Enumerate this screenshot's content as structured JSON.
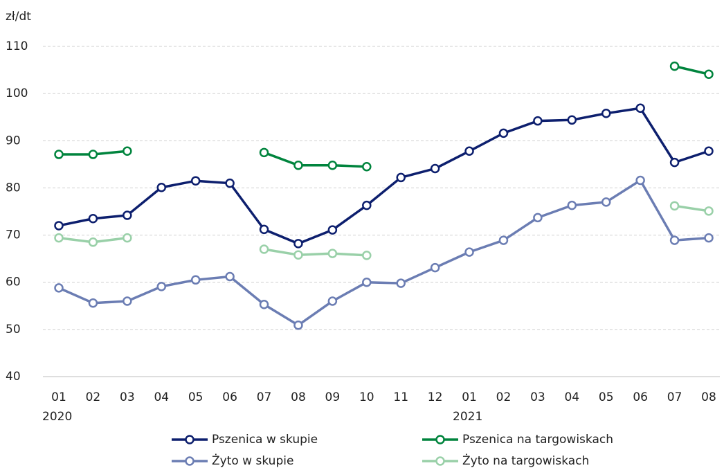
{
  "chart_data": {
    "type": "line",
    "y_unit_label": "zł/dt",
    "categories": [
      "01",
      "02",
      "03",
      "04",
      "05",
      "06",
      "07",
      "08",
      "09",
      "10",
      "11",
      "12",
      "01",
      "02",
      "03",
      "04",
      "05",
      "06",
      "07",
      "08"
    ],
    "year_labels": [
      "2020",
      null,
      null,
      null,
      null,
      null,
      null,
      null,
      null,
      null,
      null,
      null,
      "2021",
      null,
      null,
      null,
      null,
      null,
      null,
      null
    ],
    "ylim": [
      40,
      110
    ],
    "yticks": [
      40,
      50,
      60,
      70,
      80,
      90,
      100,
      110
    ],
    "grid": true,
    "legend": "bottom",
    "series": [
      {
        "name": "Pszenica w skupie",
        "color": "#0d1f6e",
        "values": [
          72.0,
          73.5,
          74.2,
          80.1,
          81.5,
          81.0,
          71.2,
          68.2,
          71.1,
          76.3,
          82.2,
          84.1,
          87.8,
          91.6,
          94.2,
          94.4,
          95.8,
          96.9,
          85.4,
          87.8
        ]
      },
      {
        "name": "Pszenica na targowiskach",
        "color": "#00843d",
        "values": [
          87.1,
          87.1,
          87.8,
          null,
          null,
          null,
          87.5,
          84.8,
          84.8,
          84.5,
          null,
          null,
          null,
          null,
          null,
          null,
          null,
          null,
          105.8,
          104.1
        ]
      },
      {
        "name": "Żyto w skupie",
        "color": "#6b7db3",
        "values": [
          58.8,
          55.6,
          56.0,
          59.1,
          60.5,
          61.2,
          55.3,
          50.9,
          56.0,
          60.0,
          59.8,
          63.1,
          66.4,
          68.9,
          73.7,
          76.3,
          77.0,
          81.6,
          68.9,
          69.4
        ]
      },
      {
        "name": "Żyto na targowiskach",
        "color": "#99d0a8",
        "values": [
          69.4,
          68.5,
          69.4,
          null,
          null,
          null,
          67.0,
          65.8,
          66.1,
          65.7,
          null,
          null,
          null,
          null,
          null,
          null,
          null,
          null,
          76.2,
          75.1
        ]
      }
    ]
  }
}
